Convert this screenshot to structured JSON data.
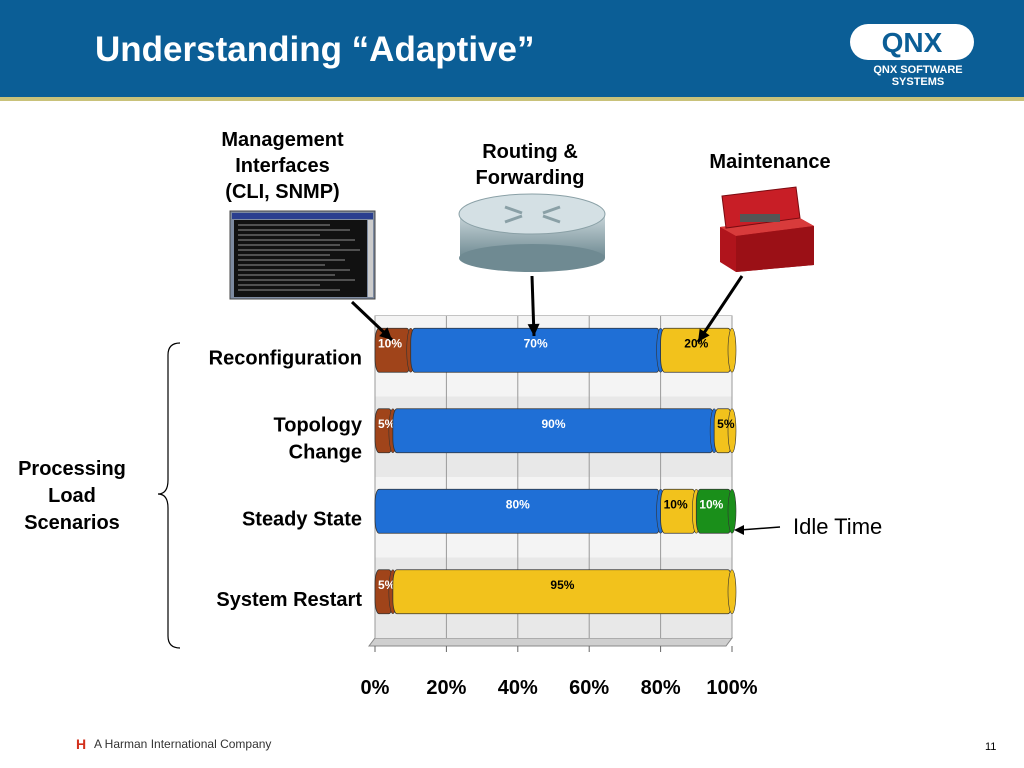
{
  "slide": {
    "title": "Understanding “Adaptive”",
    "logo_text": "QNX",
    "logo_subtitle": "QNX SOFTWARE SYSTEMS",
    "footer_brand": "A Harman International Company",
    "footer_mark": "H",
    "page_number": "11"
  },
  "categories_header": {
    "management": [
      "Management",
      "Interfaces",
      "(CLI, SNMP)"
    ],
    "routing": [
      "Routing &",
      "Forwarding"
    ],
    "maintenance": [
      "Maintenance"
    ]
  },
  "side_label": [
    "Processing",
    "Load",
    "Scenarios"
  ],
  "idle_label": "Idle Time",
  "colors": {
    "management": "#a0441a",
    "routing": "#1f6fd6",
    "maintenance": "#f2c21c",
    "idle": "#1a8f1a",
    "header_bg": "#0b5e96"
  },
  "chart_data": {
    "type": "bar",
    "orientation": "horizontal",
    "stacked": true,
    "categories": [
      "Reconfiguration",
      "Topology Change",
      "Steady State",
      "System Restart"
    ],
    "series": [
      {
        "values": [
          10,
          5,
          0,
          5
        ],
        "labels": [
          "10%",
          "5%",
          "",
          "5%"
        ]
      },
      {
        "values": [
          70,
          90,
          80,
          0
        ],
        "labels": [
          "70%",
          "90%",
          "80%",
          ""
        ]
      },
      {
        "values": [
          20,
          5,
          10,
          95
        ],
        "labels": [
          "20%",
          "5%",
          "10%",
          "95%"
        ]
      },
      {
        "values": [
          0,
          0,
          10,
          0
        ],
        "labels": [
          "",
          "",
          "10%",
          ""
        ]
      }
    ],
    "xlim": [
      0,
      100
    ],
    "xticks": [
      "0%",
      "20%",
      "40%",
      "60%",
      "80%",
      "100%"
    ],
    "grid": true
  }
}
